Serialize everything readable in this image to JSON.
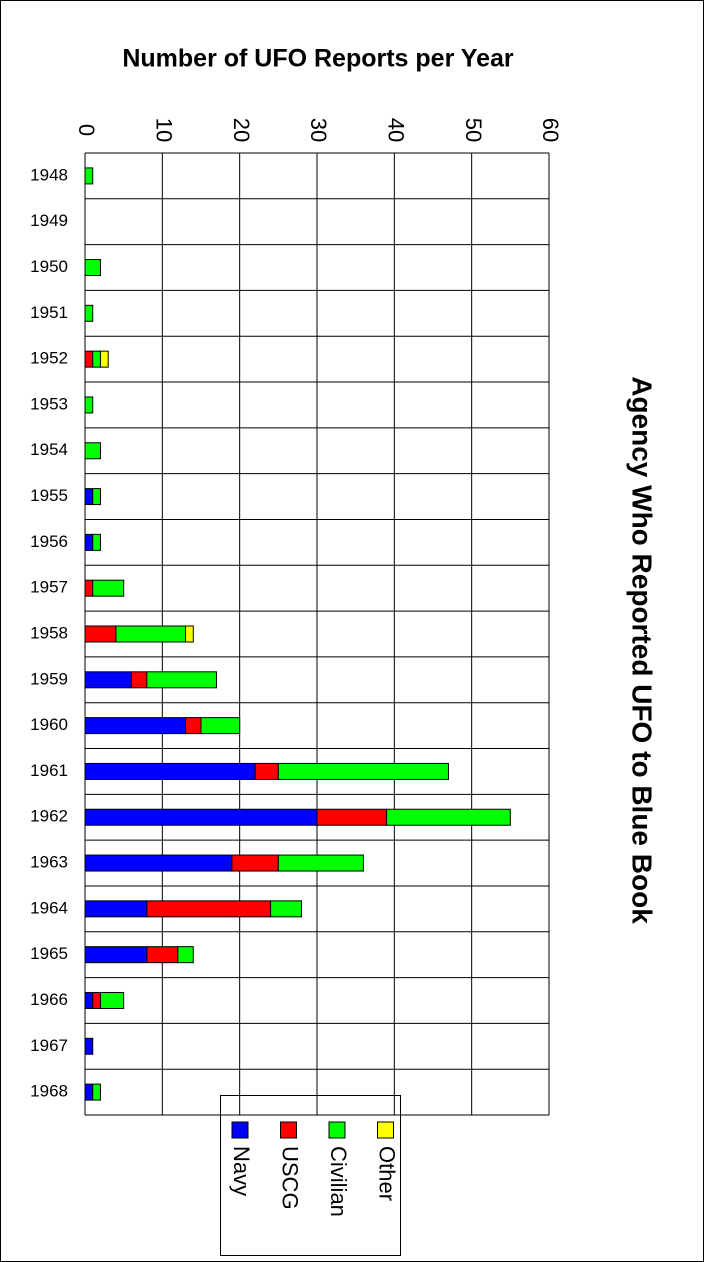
{
  "chart_data": {
    "type": "bar",
    "orientation": "horizontal",
    "stacked": true,
    "title": "Number of UFO Reports per Year",
    "subtitle": "Agency Who Reported UFO to Blue Book",
    "categories": [
      "1948",
      "1949",
      "1950",
      "1951",
      "1952",
      "1953",
      "1954",
      "1955",
      "1956",
      "1957",
      "1958",
      "1959",
      "1960",
      "1961",
      "1962",
      "1963",
      "1964",
      "1965",
      "1966",
      "1967",
      "1968"
    ],
    "series": [
      {
        "name": "Navy",
        "color": "#0000ff",
        "values": [
          0,
          0,
          0,
          0,
          0,
          0,
          0,
          1,
          1,
          0,
          0,
          6,
          13,
          22,
          30,
          19,
          8,
          8,
          1,
          1,
          1
        ]
      },
      {
        "name": "USCG",
        "color": "#ff0000",
        "values": [
          0,
          0,
          0,
          0,
          1,
          0,
          0,
          0,
          0,
          1,
          4,
          2,
          2,
          3,
          9,
          6,
          16,
          4,
          1,
          0,
          0
        ]
      },
      {
        "name": "Civilian",
        "color": "#00ff00",
        "values": [
          1,
          0,
          2,
          1,
          1,
          1,
          2,
          1,
          1,
          4,
          9,
          9,
          5,
          22,
          16,
          11,
          4,
          2,
          3,
          0,
          1
        ]
      },
      {
        "name": "Other",
        "color": "#ffff00",
        "values": [
          0,
          0,
          0,
          0,
          1,
          0,
          0,
          0,
          0,
          0,
          1,
          0,
          0,
          0,
          0,
          0,
          0,
          0,
          0,
          0,
          0
        ]
      }
    ],
    "xlim": [
      0,
      60
    ],
    "xticks": [
      0,
      10,
      20,
      30,
      40,
      50,
      60
    ],
    "grid": true
  }
}
